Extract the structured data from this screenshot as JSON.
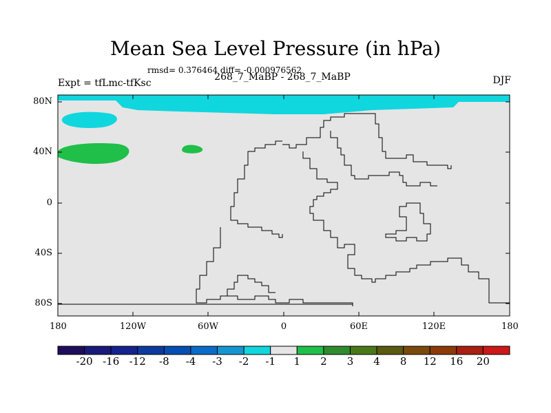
{
  "title": "Mean Sea Level Pressure (in hPa)",
  "stats": "rmsd= 0.376464 diff= -0.000976562",
  "experiment": "Expt = tfLmc-tfKsc",
  "comparison": "268_7_MaBP - 268_7_MaBP",
  "season": "DJF",
  "lat_ticks": [
    "80N",
    "40N",
    "0",
    "40S",
    "80S"
  ],
  "lon_ticks": [
    "180",
    "120W",
    "60W",
    "0",
    "60E",
    "120E",
    "180"
  ],
  "colorbar": {
    "labels": [
      "-20",
      "-16",
      "-12",
      "-8",
      "-4",
      "-3",
      "-2",
      "-1",
      "1",
      "2",
      "3",
      "4",
      "8",
      "12",
      "16",
      "20"
    ],
    "colors": [
      "#200c5c",
      "#1a1a7a",
      "#15238e",
      "#0d3a9e",
      "#064fb2",
      "#0a6bc8",
      "#1596d0",
      "#10d6de",
      "#e5e5e5",
      "#1fbf4a",
      "#2e8c2e",
      "#4a7818",
      "#5a5a10",
      "#7a4a0c",
      "#8c3a0a",
      "#a82010",
      "#cc1818"
    ]
  },
  "map_colors": {
    "land_background": "#e5e5e5",
    "cyan_fill": "#10d6de",
    "green_fill": "#1fbf4a",
    "coast": "#000000"
  }
}
